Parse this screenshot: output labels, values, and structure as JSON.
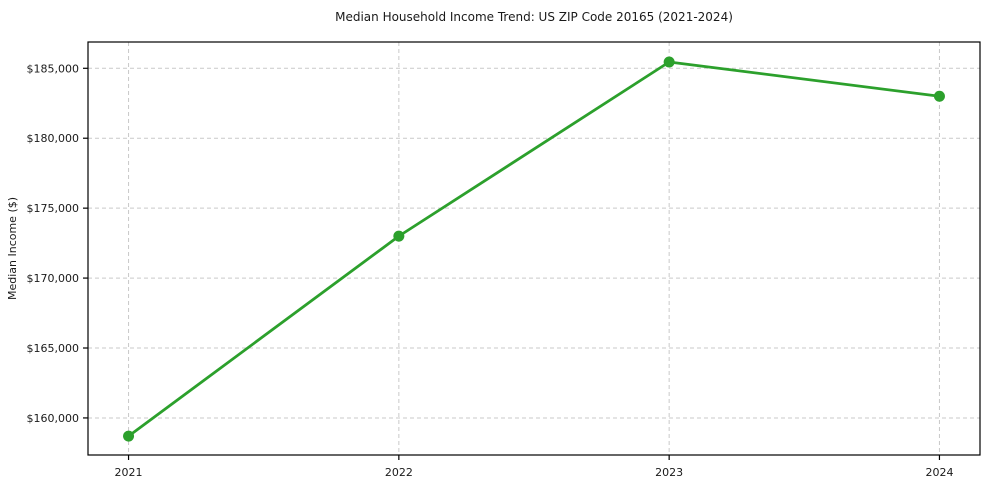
{
  "figure": {
    "background": "#ffffff"
  },
  "chart_data": {
    "type": "line",
    "title": "Median Household Income Trend: US ZIP Code 20165 (2021-2024)",
    "xlabel": "",
    "ylabel": "Median Income ($)",
    "series": [
      {
        "name": "median-household-income",
        "x": [
          2021,
          2022,
          2023,
          2024
        ],
        "y": [
          158700,
          173000,
          185450,
          183000
        ],
        "color": "#2ca02c",
        "marker": "circle",
        "line_width": 2.8,
        "marker_radius": 5.5
      }
    ],
    "x_ticks": [
      2021,
      2022,
      2023,
      2024
    ],
    "x_tick_labels": [
      "2021",
      "2022",
      "2023",
      "2024"
    ],
    "y_ticks": [
      160000,
      165000,
      170000,
      175000,
      180000,
      185000
    ],
    "y_tick_labels": [
      "$160,000",
      "$165,000",
      "$170,000",
      "$175,000",
      "$180,000",
      "$185,000"
    ],
    "xlim": [
      2020.85,
      2024.15
    ],
    "ylim": [
      157350,
      186880
    ],
    "grid": true,
    "grid_color": "#c9c9c9",
    "grid_dash": "4 3",
    "axis_color": "#000000",
    "legend": "none"
  }
}
